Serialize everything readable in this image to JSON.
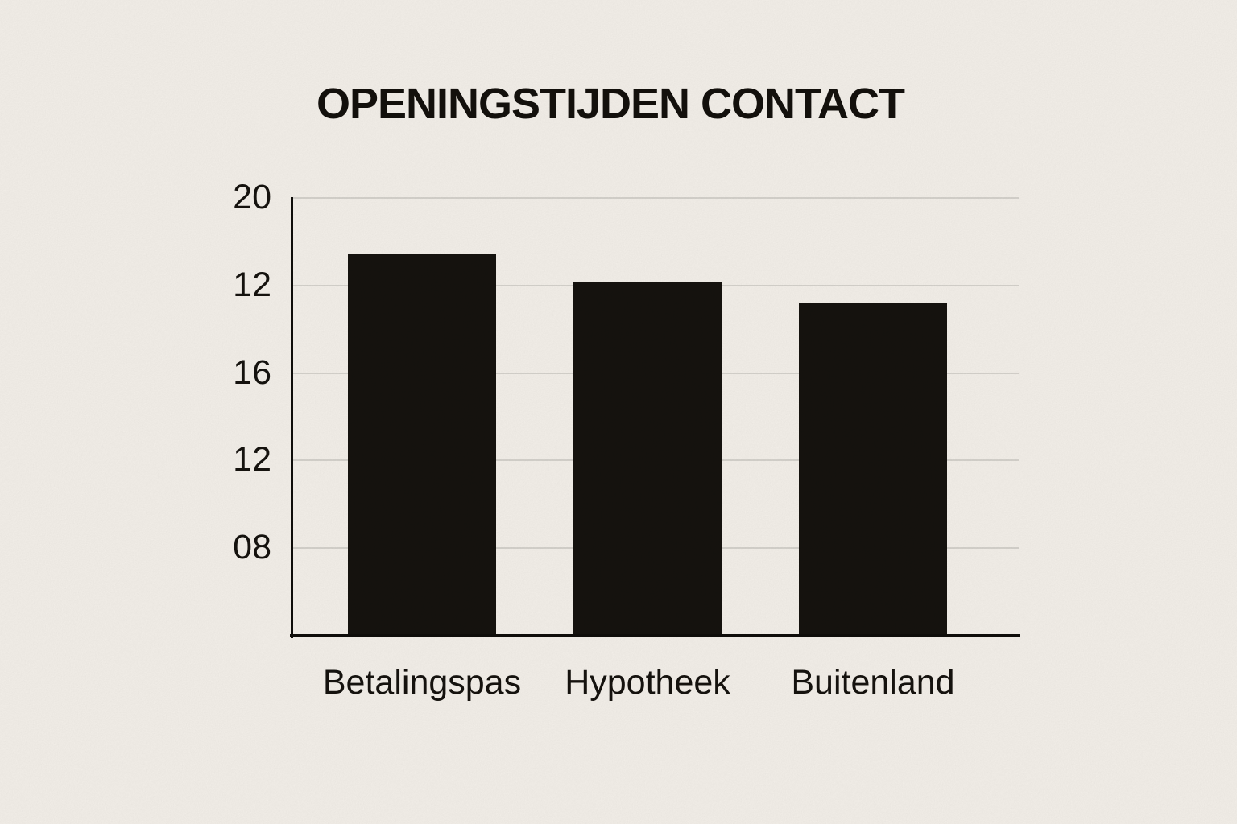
{
  "page": {
    "background_color": "#f7f3ed",
    "ink_color": "#16130f",
    "gridline_color": "#d8d5cf"
  },
  "chart_data": {
    "type": "bar",
    "title": "OPENINGSTIJDEN CONTACT",
    "categories": [
      "Betalingspas",
      "Hypotheek",
      "Buitenland"
    ],
    "values": [
      17.4,
      16.15,
      15.15
    ],
    "ylim": [
      0,
      20
    ],
    "y_tick_labels": [
      "20",
      "12",
      "16",
      "12",
      "08"
    ],
    "xlabel": "",
    "ylabel": "",
    "grid": true,
    "legend": false,
    "bar_color": "#16130f",
    "note": "Y-axis tick labels read top-to-bottom as 20, 12, 16, 12, 08 (clock times); bar heights plotted on an implied linear 0-20 scale."
  }
}
